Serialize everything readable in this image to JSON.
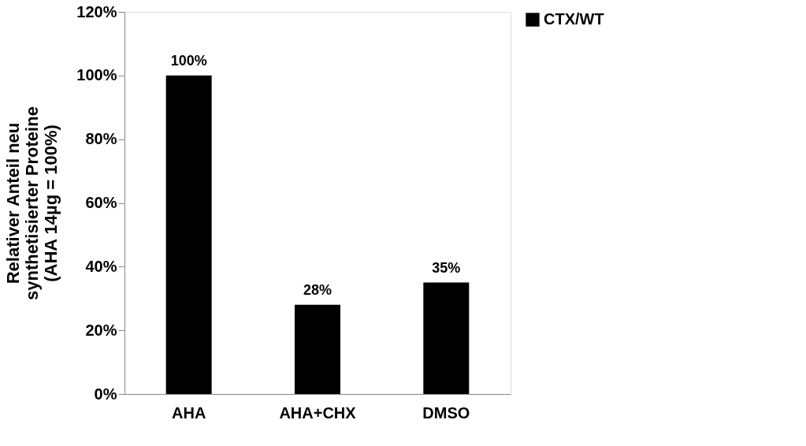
{
  "chart_data": {
    "type": "bar",
    "ylabel": "Relativer Anteil neu\nsynthetisierter Proteine\n(AHA 14µg = 100%)",
    "categories": [
      "AHA",
      "AHA+CHX",
      "DMSO"
    ],
    "series": [
      {
        "name": "CTX/WT",
        "color": "#000000",
        "values": [
          100,
          28,
          35
        ],
        "value_labels": [
          "100%",
          "28%",
          "35%"
        ]
      }
    ],
    "ylim": [
      0,
      120
    ],
    "yticks": [
      {
        "value": 0,
        "label": "0%"
      },
      {
        "value": 20,
        "label": "20%"
      },
      {
        "value": 40,
        "label": "40%"
      },
      {
        "value": 60,
        "label": "60%"
      },
      {
        "value": 80,
        "label": "80%"
      },
      {
        "value": 100,
        "label": "100%"
      },
      {
        "value": 120,
        "label": "120%"
      }
    ],
    "grid": false,
    "legend": "right"
  }
}
